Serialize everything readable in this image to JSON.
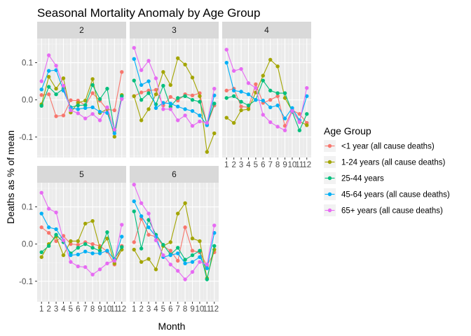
{
  "chart_data": {
    "type": "line",
    "title": "Seasonal Mortality Anomaly by Age Group",
    "xlabel": "Month",
    "ylabel": "Deaths as % of mean",
    "x": [
      1,
      2,
      3,
      4,
      5,
      6,
      7,
      8,
      9,
      10,
      11,
      12
    ],
    "x_tick_labels": [
      "1",
      "2",
      "3",
      "4",
      "5",
      "6",
      "7",
      "8",
      "9",
      "10",
      "11",
      "12"
    ],
    "ylim": [
      -0.155,
      0.165
    ],
    "y_ticks": [
      -0.1,
      0.0,
      0.1
    ],
    "y_tick_labels": [
      "-0.1",
      "0.0",
      "0.1"
    ],
    "legend_title": "Age Group",
    "legend_position": "right",
    "facets": [
      {
        "label": "2",
        "series": [
          {
            "name": "<1 year (all cause deaths)",
            "color": "#F8766D",
            "values": [
              0.013,
              0.015,
              -0.044,
              -0.042,
              -0.001,
              -0.002,
              -0.015,
              0.018,
              -0.002,
              -0.026,
              -0.028,
              0.075
            ]
          },
          {
            "name": "1-24 years (all cause deaths)",
            "color": "#A3A500",
            "values": [
              -0.012,
              0.062,
              0.03,
              0.058,
              -0.034,
              -0.008,
              -0.002,
              0.056,
              -0.035,
              -0.025,
              -0.099,
              0.013
            ]
          },
          {
            "name": "25-44 years",
            "color": "#00BF7D",
            "values": [
              -0.016,
              0.035,
              0.015,
              0.03,
              -0.02,
              -0.015,
              -0.014,
              0.04,
              0.002,
              0.03,
              -0.082,
              0.01
            ]
          },
          {
            "name": "45-64 years (all cause deaths)",
            "color": "#00B0F6",
            "values": [
              0.028,
              0.078,
              0.08,
              0.025,
              -0.022,
              -0.025,
              -0.022,
              -0.02,
              -0.032,
              -0.035,
              -0.09,
              0.003
            ]
          },
          {
            "name": "65+ years (all cause deaths)",
            "color": "#E76BF3",
            "values": [
              0.05,
              0.12,
              0.092,
              0.038,
              -0.028,
              -0.036,
              -0.05,
              -0.038,
              -0.055,
              -0.02,
              -0.08,
              0.002
            ]
          }
        ]
      },
      {
        "label": "3",
        "series": [
          {
            "name": "<1 year (all cause deaths)",
            "color": "#F8766D",
            "values": [
              0.01,
              0.02,
              0.025,
              0.027,
              -0.015,
              0.008,
              -0.002,
              0.015,
              0.012,
              0.018,
              -0.068,
              -0.015
            ]
          },
          {
            "name": "1-24 years (all cause deaths)",
            "color": "#A3A500",
            "values": [
              0.01,
              -0.055,
              -0.025,
              0.015,
              0.075,
              0.04,
              0.112,
              0.095,
              0.06,
              0.01,
              -0.14,
              -0.09
            ]
          },
          {
            "name": "25-44 years",
            "color": "#00BF7D",
            "values": [
              0.052,
              0.0,
              0.018,
              -0.012,
              0.038,
              -0.018,
              0.005,
              0.01,
              0.0,
              -0.005,
              -0.065,
              -0.01
            ]
          },
          {
            "name": "45-64 years (all cause deaths)",
            "color": "#00B0F6",
            "values": [
              0.11,
              0.04,
              0.05,
              -0.022,
              -0.008,
              -0.01,
              -0.018,
              -0.025,
              -0.03,
              -0.042,
              -0.068,
              0.012
            ]
          },
          {
            "name": "65+ years (all cause deaths)",
            "color": "#E76BF3",
            "values": [
              0.14,
              0.08,
              0.105,
              0.058,
              -0.025,
              -0.025,
              -0.055,
              -0.042,
              -0.07,
              -0.058,
              -0.062,
              0.03
            ]
          }
        ]
      },
      {
        "label": "4",
        "series": [
          {
            "name": "<1 year (all cause deaths)",
            "color": "#F8766D",
            "values": [
              0.025,
              0.03,
              -0.018,
              -0.02,
              0.042,
              -0.008,
              0.0,
              0.01,
              -0.07,
              -0.028,
              -0.038,
              -0.062
            ]
          },
          {
            "name": "1-24 years (all cause deaths)",
            "color": "#A3A500",
            "values": [
              -0.048,
              -0.062,
              -0.028,
              -0.025,
              0.02,
              0.065,
              0.108,
              0.09,
              0.005,
              -0.03,
              -0.058,
              -0.068
            ]
          },
          {
            "name": "25-44 years",
            "color": "#00BF7D",
            "values": [
              0.005,
              0.01,
              -0.005,
              -0.015,
              0.0,
              0.052,
              0.025,
              0.018,
              0.018,
              -0.032,
              -0.082,
              -0.038
            ]
          },
          {
            "name": "45-64 years (all cause deaths)",
            "color": "#00B0F6",
            "values": [
              0.1,
              0.025,
              0.022,
              0.015,
              0.0,
              -0.002,
              -0.02,
              -0.015,
              -0.05,
              -0.022,
              -0.055,
              0.01
            ]
          },
          {
            "name": "65+ years (all cause deaths)",
            "color": "#E76BF3",
            "values": [
              0.135,
              0.078,
              0.083,
              0.045,
              0.032,
              -0.04,
              -0.06,
              -0.072,
              -0.082,
              -0.03,
              -0.06,
              0.032
            ]
          }
        ]
      },
      {
        "label": "5",
        "series": [
          {
            "name": "<1 year (all cause deaths)",
            "color": "#F8766D",
            "values": [
              0.045,
              0.03,
              0.008,
              0.022,
              0.0,
              -0.002,
              0.005,
              0.0,
              -0.005,
              -0.02,
              -0.055,
              -0.005
            ]
          },
          {
            "name": "1-24 years (all cause deaths)",
            "color": "#A3A500",
            "values": [
              -0.035,
              0.0,
              0.02,
              -0.03,
              0.008,
              0.008,
              0.055,
              0.062,
              -0.01,
              0.015,
              -0.052,
              -0.015
            ]
          },
          {
            "name": "25-44 years",
            "color": "#00BF7D",
            "values": [
              -0.022,
              -0.005,
              0.025,
              0.005,
              -0.025,
              -0.01,
              0.0,
              -0.01,
              -0.018,
              0.032,
              -0.04,
              -0.008
            ]
          },
          {
            "name": "45-64 years (all cause deaths)",
            "color": "#00B0F6",
            "values": [
              0.082,
              0.045,
              0.04,
              0.01,
              -0.03,
              -0.028,
              -0.02,
              -0.025,
              -0.025,
              -0.018,
              -0.042,
              0.02
            ]
          },
          {
            "name": "65+ years (all cause deaths)",
            "color": "#E76BF3",
            "values": [
              0.138,
              0.095,
              0.085,
              0.01,
              -0.048,
              -0.06,
              -0.062,
              -0.082,
              -0.068,
              -0.052,
              -0.045,
              0.052
            ]
          }
        ]
      },
      {
        "label": "6",
        "series": [
          {
            "name": "<1 year (all cause deaths)",
            "color": "#F8766D",
            "values": [
              0.005,
              0.068,
              0.025,
              0.02,
              -0.005,
              -0.018,
              -0.045,
              0.045,
              -0.018,
              -0.022,
              -0.058,
              -0.022
            ]
          },
          {
            "name": "1-24 years (all cause deaths)",
            "color": "#A3A500",
            "values": [
              -0.015,
              -0.048,
              -0.04,
              -0.068,
              -0.005,
              0.005,
              0.082,
              0.11,
              0.015,
              0.008,
              -0.092,
              -0.015
            ]
          },
          {
            "name": "25-44 years",
            "color": "#00BF7D",
            "values": [
              0.088,
              -0.012,
              0.065,
              0.025,
              -0.002,
              -0.028,
              -0.01,
              -0.042,
              -0.03,
              -0.018,
              -0.095,
              -0.005
            ]
          },
          {
            "name": "45-64 years (all cause deaths)",
            "color": "#00B0F6",
            "values": [
              0.115,
              0.075,
              0.045,
              0.02,
              -0.035,
              -0.03,
              -0.025,
              -0.052,
              -0.048,
              -0.035,
              -0.065,
              0.03
            ]
          },
          {
            "name": "65+ years (all cause deaths)",
            "color": "#E76BF3",
            "values": [
              0.16,
              0.11,
              0.082,
              0.01,
              -0.03,
              -0.055,
              -0.072,
              -0.095,
              -0.075,
              -0.048,
              -0.055,
              0.05
            ]
          }
        ]
      }
    ]
  }
}
